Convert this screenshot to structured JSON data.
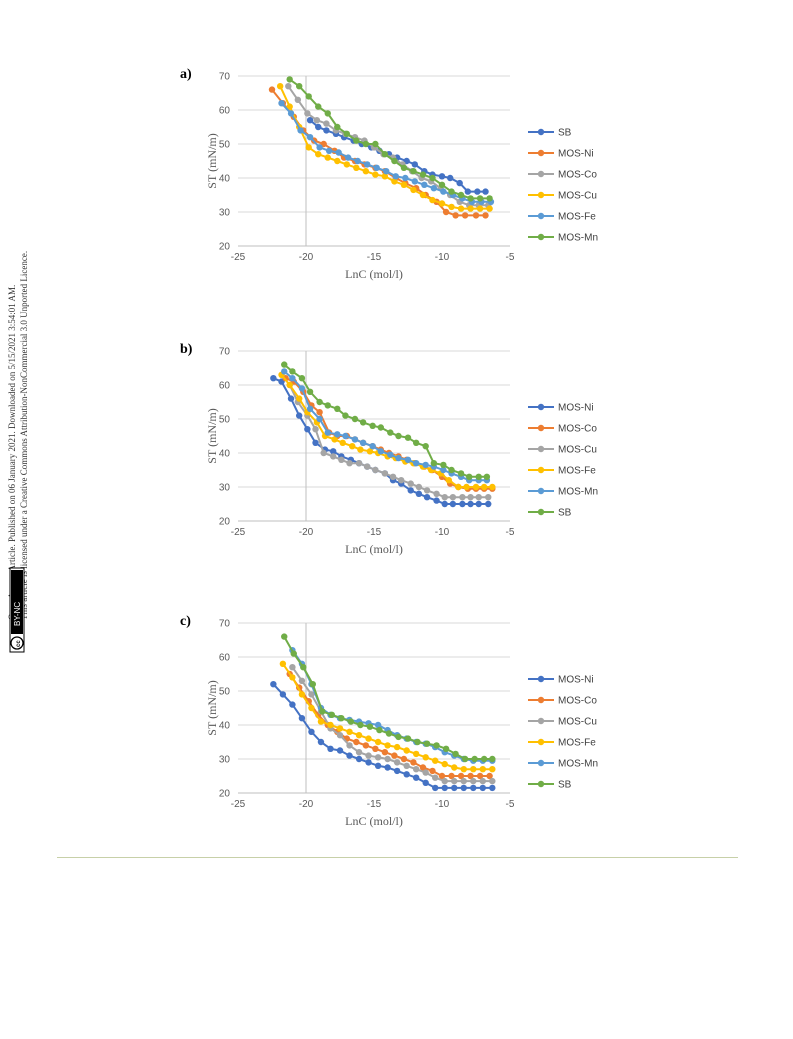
{
  "side_note": {
    "line1": "Open Access Article. Published on 06 January 2021. Downloaded on 5/15/2021 3:54:01 AM.",
    "line2": "This article is licensed under a Creative Commons Attribution-NonCommercial 3.0 Unported Licence.",
    "badge": "BY-NC",
    "cc": "cc"
  },
  "colors": {
    "SB": "#4472c4",
    "MOS-Ni": "#ed7d31",
    "MOS-Co": "#a5a5a5",
    "MOS-Cu": "#ffc000",
    "MOS-Fe": "#5b9bd5",
    "MOS-Mn": "#70ad47",
    "footer_rule": "#c7d0a8"
  },
  "chart_data": [
    {
      "panel": "a)",
      "type": "line",
      "xlabel": "LnC (mol/l)",
      "ylabel": "ST (mN/m)",
      "xlim": [
        -25,
        -5
      ],
      "ylim": [
        20,
        70
      ],
      "xticks": [
        "-25",
        "-20",
        "-15",
        "-10",
        "-5"
      ],
      "yticks": [
        "20",
        "30",
        "40",
        "50",
        "60",
        "70"
      ],
      "grid": "horizontal",
      "legend": "right",
      "series": [
        {
          "name": "SB",
          "color": "#4472c4",
          "x": [
            -19.7,
            -19.1,
            -18.5,
            -17.8,
            -17.2,
            -16.5,
            -15.9,
            -15.2,
            -14.6,
            -13.9,
            -13.3,
            -12.6,
            -12.0,
            -11.3,
            -10.7,
            -10.0,
            -9.4,
            -8.7,
            -8.1,
            -7.4,
            -6.8
          ],
          "y": [
            57,
            55,
            54,
            53,
            52,
            51,
            50,
            49,
            48,
            47,
            46,
            45,
            44,
            42,
            41,
            40.5,
            40,
            38.5,
            36,
            36,
            36
          ]
        },
        {
          "name": "MOS-Ni",
          "color": "#ed7d31",
          "x": [
            -22.5,
            -21.7,
            -20.9,
            -20.2,
            -19.4,
            -18.7,
            -17.9,
            -17.2,
            -16.4,
            -15.7,
            -14.9,
            -14.2,
            -13.4,
            -12.7,
            -11.9,
            -11.2,
            -10.4,
            -9.7,
            -9.0,
            -8.3,
            -7.5,
            -6.8
          ],
          "y": [
            66,
            62,
            58,
            54,
            51,
            50,
            48,
            46,
            45,
            44,
            43,
            42,
            40,
            38.5,
            37,
            35,
            33,
            30,
            29,
            29,
            29,
            29
          ]
        },
        {
          "name": "MOS-Co",
          "color": "#a5a5a5",
          "x": [
            -21.3,
            -20.6,
            -19.9,
            -19.2,
            -18.5,
            -17.8,
            -17.1,
            -16.4,
            -15.7,
            -15.0,
            -14.3,
            -13.6,
            -12.9,
            -12.2,
            -11.5,
            -10.8,
            -10.1,
            -9.4,
            -8.7,
            -8.0,
            -7.3,
            -6.6
          ],
          "y": [
            67,
            63,
            59,
            57,
            56,
            54,
            53,
            52,
            51,
            49,
            47,
            46,
            44,
            42,
            40,
            39,
            37,
            35,
            33,
            32,
            32,
            32
          ]
        },
        {
          "name": "MOS-Cu",
          "color": "#ffc000",
          "x": [
            -21.9,
            -21.2,
            -20.5,
            -19.8,
            -19.1,
            -18.4,
            -17.7,
            -17.0,
            -16.3,
            -15.6,
            -14.9,
            -14.2,
            -13.5,
            -12.8,
            -12.1,
            -11.4,
            -10.7,
            -10.0,
            -9.3,
            -8.6,
            -7.9,
            -7.2,
            -6.5
          ],
          "y": [
            67,
            61,
            55,
            49,
            47,
            46,
            45,
            44,
            43,
            42,
            41,
            40.5,
            39,
            38,
            36.5,
            35,
            33.5,
            32.5,
            31.5,
            31,
            31,
            31,
            31
          ]
        },
        {
          "name": "MOS-Fe",
          "color": "#5b9bd5",
          "x": [
            -21.8,
            -21.1,
            -20.4,
            -19.7,
            -19.0,
            -18.3,
            -17.6,
            -16.9,
            -16.2,
            -15.5,
            -14.8,
            -14.1,
            -13.4,
            -12.7,
            -12.0,
            -11.3,
            -10.6,
            -9.9,
            -9.2,
            -8.5,
            -7.8,
            -7.1,
            -6.4
          ],
          "y": [
            62,
            59,
            54,
            52,
            49,
            48,
            47.5,
            46,
            45,
            44,
            43,
            42,
            40.5,
            40,
            39,
            38,
            37,
            36,
            35,
            34,
            33,
            33,
            33
          ]
        },
        {
          "name": "MOS-Mn",
          "color": "#70ad47",
          "x": [
            -21.2,
            -20.5,
            -19.8,
            -19.1,
            -18.4,
            -17.7,
            -17.0,
            -16.3,
            -15.6,
            -14.9,
            -14.2,
            -13.5,
            -12.8,
            -12.1,
            -11.4,
            -10.7,
            -10.0,
            -9.3,
            -8.6,
            -7.9,
            -7.2,
            -6.5
          ],
          "y": [
            69,
            67,
            64,
            61,
            59,
            55,
            53,
            51,
            50,
            50,
            47,
            45,
            43,
            42,
            41,
            40,
            38,
            36,
            35,
            34,
            34,
            34
          ]
        }
      ]
    },
    {
      "panel": "b)",
      "type": "line",
      "xlabel": "LnC (mol/l)",
      "ylabel": "ST (mN/m)",
      "xlim": [
        -25,
        -5
      ],
      "ylim": [
        20,
        70
      ],
      "xticks": [
        "-25",
        "-20",
        "-15",
        "-10",
        "-5"
      ],
      "yticks": [
        "20",
        "30",
        "40",
        "50",
        "60",
        "70"
      ],
      "grid": "horizontal",
      "legend": "right",
      "series": [
        {
          "name": "MOS-Ni",
          "color": "#4472c4",
          "x": [
            -22.4,
            -21.8,
            -21.1,
            -20.5,
            -19.9,
            -19.3,
            -18.6,
            -18.0,
            -17.4,
            -16.7,
            -16.1,
            -15.5,
            -14.9,
            -14.2,
            -13.6,
            -13.0,
            -12.3,
            -11.7,
            -11.1,
            -10.4,
            -9.8,
            -9.2,
            -8.5,
            -7.9,
            -7.3,
            -6.6
          ],
          "y": [
            62,
            61,
            56,
            51,
            47,
            43,
            41,
            40.5,
            39,
            38,
            37,
            36,
            35,
            34,
            32,
            31,
            29,
            28,
            27,
            26,
            25,
            25,
            25,
            25,
            25,
            25
          ]
        },
        {
          "name": "MOS-Co",
          "color": "#ed7d31",
          "x": [
            -21.5,
            -20.9,
            -20.2,
            -19.6,
            -19.0,
            -18.3,
            -17.7,
            -17.0,
            -16.4,
            -15.8,
            -15.1,
            -14.5,
            -13.9,
            -13.2,
            -12.6,
            -12.0,
            -11.3,
            -10.7,
            -10.0,
            -9.4,
            -8.8,
            -8.1,
            -7.5,
            -6.9,
            -6.3
          ],
          "y": [
            62,
            61,
            58,
            54,
            52,
            46,
            45,
            45,
            44,
            43,
            42,
            41,
            40,
            39,
            38,
            37,
            36,
            35,
            33,
            31,
            30,
            29.5,
            29.5,
            29.5,
            29.5
          ]
        },
        {
          "name": "MOS-Cu",
          "color": "#a5a5a5",
          "x": [
            -21.2,
            -20.6,
            -19.9,
            -19.3,
            -18.7,
            -18.0,
            -17.4,
            -16.8,
            -16.1,
            -15.5,
            -14.9,
            -14.2,
            -13.6,
            -13.0,
            -12.3,
            -11.7,
            -11.1,
            -10.4,
            -9.8,
            -9.2,
            -8.5,
            -7.9,
            -7.3,
            -6.6
          ],
          "y": [
            60,
            55,
            51,
            47,
            40,
            39,
            38,
            37,
            37,
            36,
            35,
            34,
            33,
            32,
            31,
            30,
            29,
            28,
            27,
            27,
            27,
            27,
            27,
            27
          ]
        },
        {
          "name": "MOS-Fe",
          "color": "#ffc000",
          "x": [
            -21.8,
            -21.2,
            -20.5,
            -19.9,
            -19.2,
            -18.6,
            -17.9,
            -17.3,
            -16.6,
            -16.0,
            -15.3,
            -14.7,
            -14.0,
            -13.4,
            -12.7,
            -12.1,
            -11.4,
            -10.8,
            -10.1,
            -9.5,
            -8.8,
            -8.2,
            -7.5,
            -6.9,
            -6.3
          ],
          "y": [
            63,
            60,
            56,
            52,
            49,
            45,
            44,
            43,
            42,
            41,
            40.5,
            40,
            39,
            38.5,
            37.5,
            37,
            36,
            35,
            34,
            32,
            30,
            30,
            30,
            30,
            30
          ]
        },
        {
          "name": "MOS-Mn",
          "color": "#5b9bd5",
          "x": [
            -21.6,
            -21.0,
            -20.3,
            -19.7,
            -19.0,
            -18.4,
            -17.7,
            -17.1,
            -16.4,
            -15.8,
            -15.1,
            -14.5,
            -13.8,
            -13.2,
            -12.5,
            -11.9,
            -11.2,
            -10.6,
            -9.9,
            -9.3,
            -8.6,
            -8.0,
            -7.3,
            -6.7
          ],
          "y": [
            64,
            62,
            59,
            53,
            50,
            46,
            45.5,
            45,
            44,
            43,
            42,
            40.5,
            39.5,
            38.5,
            38,
            37,
            36.5,
            36,
            35,
            34,
            33,
            32,
            32,
            32
          ]
        },
        {
          "name": "SB",
          "color": "#70ad47",
          "x": [
            -21.6,
            -21.0,
            -20.3,
            -19.7,
            -19.0,
            -18.4,
            -17.7,
            -17.1,
            -16.4,
            -15.8,
            -15.1,
            -14.5,
            -13.8,
            -13.2,
            -12.5,
            -11.9,
            -11.2,
            -10.6,
            -9.9,
            -9.3,
            -8.6,
            -8.0,
            -7.3,
            -6.7
          ],
          "y": [
            66,
            64,
            62,
            58,
            55,
            54,
            53,
            51,
            50,
            49,
            48,
            47.5,
            46,
            45,
            44.5,
            43,
            42,
            37,
            36.5,
            35,
            34,
            33,
            33,
            33
          ]
        }
      ]
    },
    {
      "panel": "c)",
      "type": "line",
      "xlabel": "LnC (mol/l)",
      "ylabel": "ST (mN/m)",
      "xlim": [
        -25,
        -5
      ],
      "ylim": [
        20,
        70
      ],
      "xticks": [
        "-25",
        "-20",
        "-15",
        "-10",
        "-5"
      ],
      "yticks": [
        "20",
        "30",
        "40",
        "50",
        "60",
        "70"
      ],
      "grid": "horizontal",
      "legend": "right",
      "series": [
        {
          "name": "MOS-Ni",
          "color": "#4472c4",
          "x": [
            -22.4,
            -21.7,
            -21.0,
            -20.3,
            -19.6,
            -18.9,
            -18.2,
            -17.5,
            -16.8,
            -16.1,
            -15.4,
            -14.7,
            -14.0,
            -13.3,
            -12.6,
            -11.9,
            -11.2,
            -10.5,
            -9.8,
            -9.1,
            -8.4,
            -7.7,
            -7.0,
            -6.3
          ],
          "y": [
            52,
            49,
            46,
            42,
            38,
            35,
            33,
            32.5,
            31,
            30,
            29,
            28,
            27.5,
            26.5,
            25.5,
            24.5,
            23,
            21.5,
            21.5,
            21.5,
            21.5,
            21.5,
            21.5,
            21.5
          ]
        },
        {
          "name": "MOS-Co",
          "color": "#ed7d31",
          "x": [
            -21.2,
            -20.5,
            -19.8,
            -19.1,
            -18.4,
            -17.7,
            -17.0,
            -16.3,
            -15.6,
            -14.9,
            -14.2,
            -13.5,
            -12.8,
            -12.1,
            -11.4,
            -10.7,
            -10.0,
            -9.3,
            -8.6,
            -7.9,
            -7.2,
            -6.5
          ],
          "y": [
            55,
            51,
            47,
            43,
            40,
            38,
            36,
            35,
            34,
            33,
            32,
            31,
            30,
            29,
            27.5,
            26.5,
            25,
            25,
            25,
            25,
            25,
            25
          ]
        },
        {
          "name": "MOS-Cu",
          "color": "#a5a5a5",
          "x": [
            -21.0,
            -20.3,
            -19.6,
            -18.9,
            -18.2,
            -17.5,
            -16.8,
            -16.1,
            -15.4,
            -14.7,
            -14.0,
            -13.3,
            -12.6,
            -11.9,
            -11.2,
            -10.5,
            -9.8,
            -9.1,
            -8.4,
            -7.7,
            -7.0,
            -6.3
          ],
          "y": [
            57,
            53,
            49,
            44,
            39,
            37,
            34,
            32,
            31,
            30.5,
            30,
            29,
            28,
            27,
            26,
            24.5,
            23.5,
            23.5,
            23.5,
            23.5,
            23.5,
            23.5
          ]
        },
        {
          "name": "MOS-Fe",
          "color": "#ffc000",
          "x": [
            -21.7,
            -21.0,
            -20.3,
            -19.6,
            -18.9,
            -18.2,
            -17.5,
            -16.8,
            -16.1,
            -15.4,
            -14.7,
            -14.0,
            -13.3,
            -12.6,
            -11.9,
            -11.2,
            -10.5,
            -9.8,
            -9.1,
            -8.4,
            -7.7,
            -7.0,
            -6.3
          ],
          "y": [
            58,
            54,
            49,
            45,
            41,
            40,
            39,
            38,
            37,
            36,
            35,
            34,
            33.5,
            32.5,
            31.5,
            30.5,
            29.5,
            28.5,
            27.5,
            27,
            27,
            27,
            27
          ]
        },
        {
          "name": "MOS-Mn",
          "color": "#5b9bd5",
          "x": [
            -21.0,
            -20.3,
            -19.6,
            -18.9,
            -18.2,
            -17.5,
            -16.8,
            -16.1,
            -15.4,
            -14.7,
            -14.0,
            -13.3,
            -12.6,
            -11.9,
            -11.2,
            -10.5,
            -9.8,
            -9.1,
            -8.4,
            -7.7,
            -7.0,
            -6.3
          ],
          "y": [
            62,
            58,
            52,
            45,
            43,
            42,
            41.5,
            41,
            40.5,
            40,
            38.5,
            37,
            36,
            35,
            34.5,
            33.5,
            32,
            31,
            30,
            29.5,
            29.5,
            29.5
          ]
        },
        {
          "name": "SB",
          "color": "#70ad47",
          "x": [
            -21.6,
            -20.9,
            -20.2,
            -19.5,
            -18.8,
            -18.1,
            -17.4,
            -16.7,
            -16.0,
            -15.3,
            -14.6,
            -13.9,
            -13.2,
            -12.5,
            -11.8,
            -11.1,
            -10.4,
            -9.7,
            -9.0,
            -8.3,
            -7.6,
            -6.9,
            -6.3
          ],
          "y": [
            66,
            61,
            57,
            52,
            44,
            43,
            42,
            41,
            40,
            39.5,
            38.5,
            37.5,
            36.5,
            36,
            35,
            34.5,
            34,
            33,
            31.5,
            30,
            30,
            30,
            30
          ]
        }
      ]
    }
  ]
}
